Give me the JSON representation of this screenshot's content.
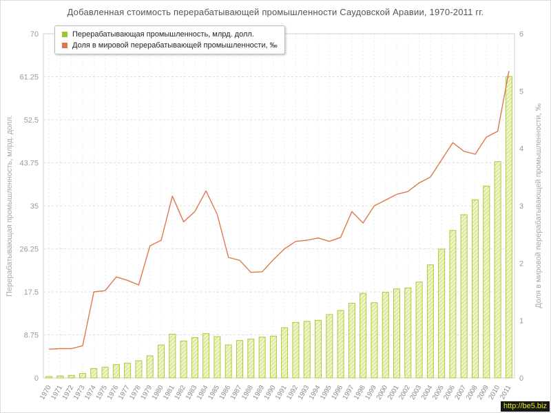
{
  "title": "Добавленная стоимость перерабатывающей промышленности Саудовской Аравии, 1970-2011 гг.",
  "watermark": "http://be5.biz",
  "colors": {
    "bar_fill": "#eef5cc",
    "bar_stripe": "#cde171",
    "bar_border": "#a9cb3a",
    "line": "#e0764d",
    "grid": "#dcdcdc",
    "axis_text": "#999999",
    "title_text": "#555555",
    "watermark_bg": "#181818",
    "watermark_text": "#e9e909"
  },
  "chart_data": {
    "type": "combo-bar-line",
    "title": "Добавленная стоимость перерабатывающей промышленности Саудовской Аравии, 1970-2011 гг.",
    "categories": [
      1970,
      1971,
      1972,
      1973,
      1974,
      1975,
      1976,
      1977,
      1978,
      1979,
      1980,
      1981,
      1982,
      1983,
      1984,
      1985,
      1986,
      1987,
      1988,
      1989,
      1990,
      1991,
      1992,
      1993,
      1994,
      1995,
      1996,
      1997,
      1998,
      1999,
      2000,
      2001,
      2002,
      2003,
      2004,
      2005,
      2006,
      2007,
      2008,
      2009,
      2010,
      2011
    ],
    "series": [
      {
        "name": "Перерабатывающая промышленность, млрд. долл.",
        "type": "bar",
        "axis": "left",
        "color": "#9fc332",
        "values": [
          0.3,
          0.4,
          0.5,
          0.9,
          1.9,
          2.2,
          2.7,
          3.0,
          3.5,
          4.5,
          6.7,
          8.9,
          7.5,
          8.2,
          9.0,
          8.4,
          6.7,
          7.6,
          7.9,
          8.3,
          8.5,
          10.2,
          11.3,
          11.5,
          11.7,
          12.9,
          13.7,
          15.2,
          17.2,
          15.3,
          17.4,
          18.1,
          18.3,
          19.5,
          23.0,
          26.2,
          30.0,
          33.2,
          36.2,
          39.0,
          44.0,
          61.3
        ]
      },
      {
        "name": "Доля в мировой перерабатывающей промышленности, ‰",
        "type": "line",
        "axis": "right",
        "color": "#e0764d",
        "values": [
          0.5,
          0.51,
          0.51,
          0.56,
          1.5,
          1.52,
          1.76,
          1.7,
          1.62,
          2.3,
          2.4,
          3.17,
          2.72,
          2.9,
          3.26,
          2.85,
          2.1,
          2.05,
          1.84,
          1.85,
          2.06,
          2.25,
          2.38,
          2.4,
          2.44,
          2.38,
          2.45,
          2.9,
          2.7,
          3.0,
          3.1,
          3.2,
          3.25,
          3.4,
          3.5,
          3.8,
          4.1,
          3.95,
          3.9,
          4.2,
          4.3,
          5.35
        ]
      }
    ],
    "left_axis": {
      "label": "Перерабатывающая промышленность, млрд. долл.",
      "ticks": [
        0,
        8.75,
        17.5,
        26.25,
        35,
        43.75,
        52.5,
        61.25,
        70
      ],
      "min": 0,
      "max": 70
    },
    "right_axis": {
      "label": "Доля в мировой перерабатывающей промышленности, ‰",
      "ticks": [
        0,
        1,
        2,
        3,
        4,
        5,
        6
      ],
      "min": 0,
      "max": 6
    },
    "grid": true,
    "legend_position": "top-left"
  }
}
